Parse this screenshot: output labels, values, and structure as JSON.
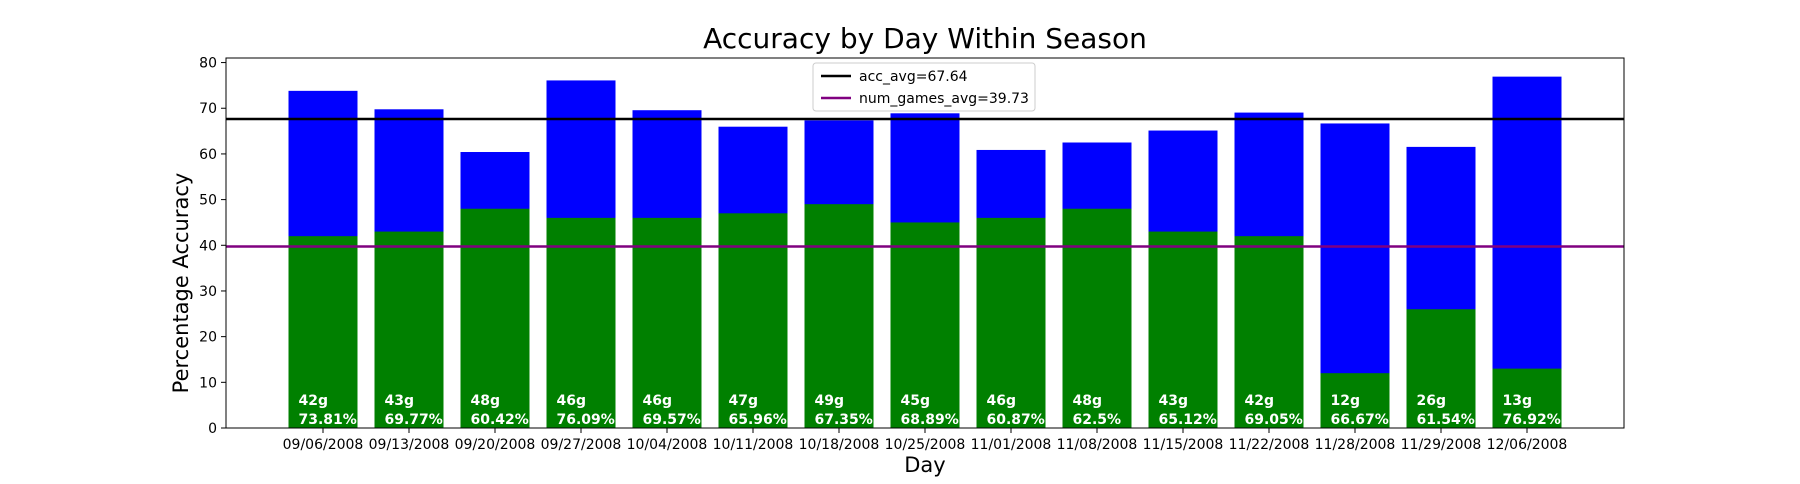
{
  "chart_data": {
    "type": "bar",
    "title": "Accuracy by Day Within Season",
    "xlabel": "Day",
    "ylabel": "Percentage Accuracy",
    "ylim": [
      0,
      81
    ],
    "yticks": [
      0,
      10,
      20,
      30,
      40,
      50,
      60,
      70,
      80
    ],
    "grid": false,
    "legend_position": "top-center",
    "categories": [
      "09/06/2008",
      "09/13/2008",
      "09/20/2008",
      "09/27/2008",
      "10/04/2008",
      "10/11/2008",
      "10/18/2008",
      "10/25/2008",
      "11/01/2008",
      "11/08/2008",
      "11/15/2008",
      "11/22/2008",
      "11/28/2008",
      "11/29/2008",
      "12/06/2008"
    ],
    "series": [
      {
        "color": "#0000ff",
        "values": [
          73.81,
          69.77,
          60.42,
          76.09,
          69.57,
          65.96,
          67.35,
          68.89,
          60.87,
          62.5,
          65.12,
          69.05,
          66.67,
          61.54,
          76.92
        ]
      },
      {
        "color": "#008000",
        "values": [
          42,
          43,
          48,
          46,
          46,
          47,
          49,
          45,
          46,
          48,
          43,
          42,
          12,
          26,
          13
        ]
      }
    ],
    "bar_labels_games": [
      "42g",
      "43g",
      "48g",
      "46g",
      "46g",
      "47g",
      "49g",
      "45g",
      "46g",
      "48g",
      "43g",
      "42g",
      "12g",
      "26g",
      "13g"
    ],
    "bar_labels_accuracy": [
      "73.81%",
      "69.77%",
      "60.42%",
      "76.09%",
      "69.57%",
      "65.96%",
      "67.35%",
      "68.89%",
      "60.87%",
      "62.5%",
      "65.12%",
      "69.05%",
      "66.67%",
      "61.54%",
      "76.92%"
    ],
    "reference_lines": [
      {
        "label": "acc_avg=67.64",
        "value": 67.64,
        "color": "#000000"
      },
      {
        "label": "num_games_avg=39.73",
        "value": 39.73,
        "color": "#800080"
      }
    ]
  }
}
